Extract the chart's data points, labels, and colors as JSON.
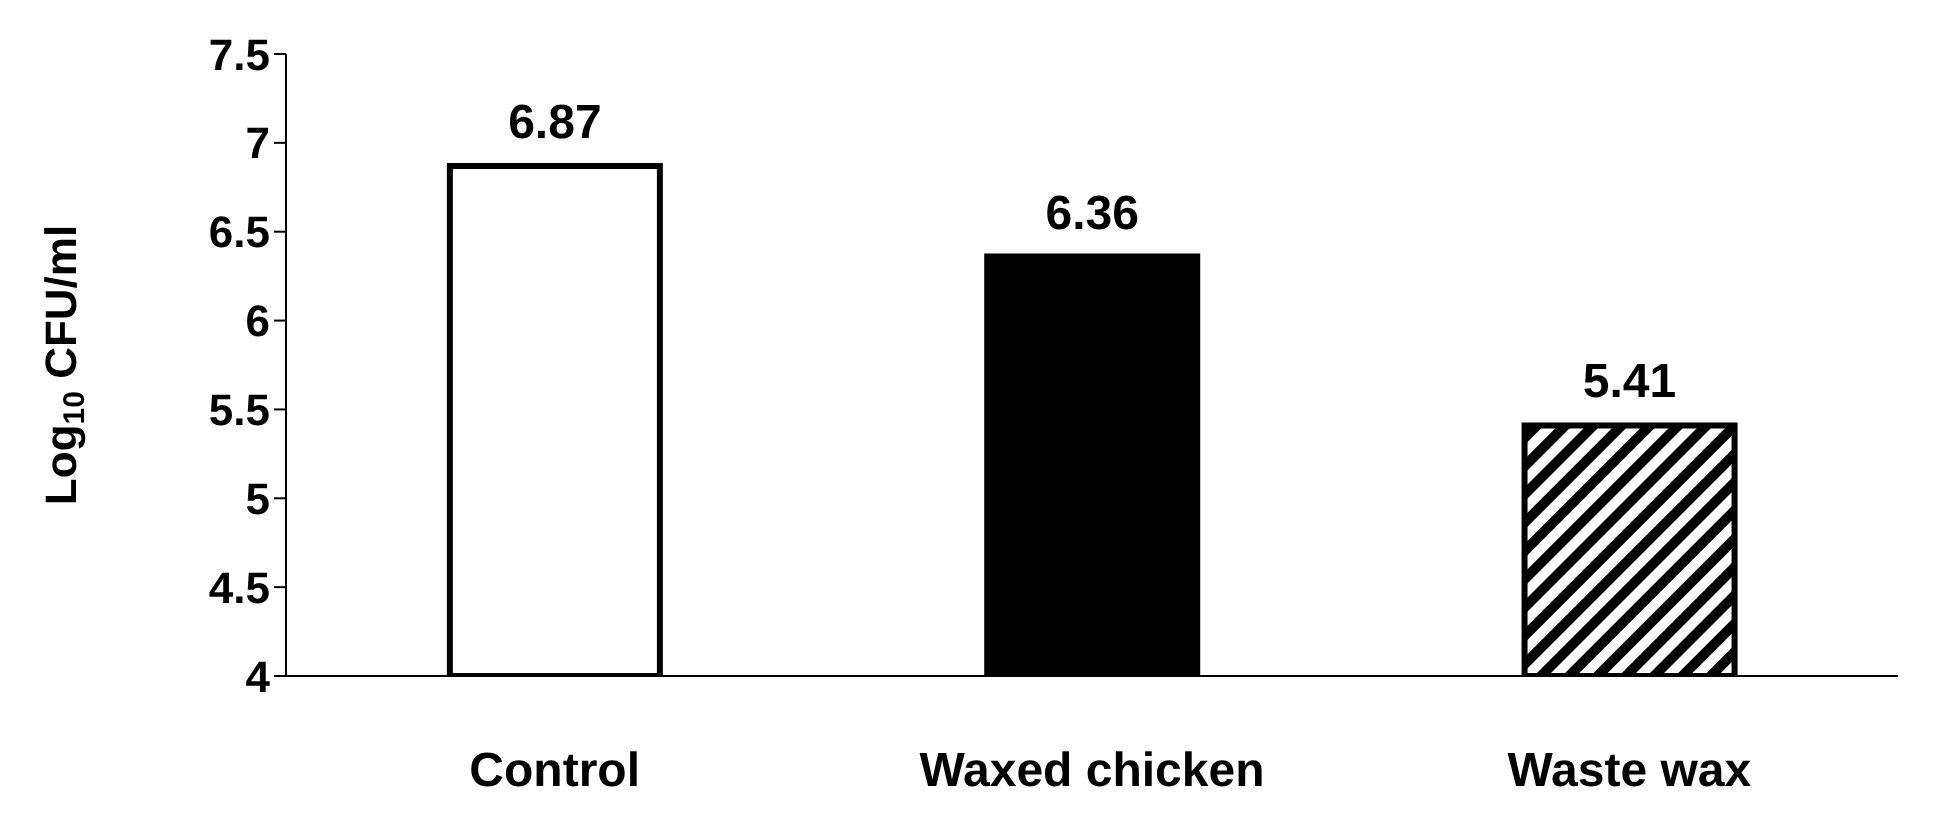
{
  "chart_data": {
    "type": "bar",
    "ylabel": "Log$_{10}$ CFU/ml",
    "categories": [
      "Control",
      "Waxed chicken",
      "Waste wax"
    ],
    "values": [
      6.87,
      6.36,
      5.41
    ],
    "colors": [
      "#ffffff",
      "#000000",
      "#000000"
    ],
    "ylim": [
      4,
      7.5
    ],
    "yticks": [
      4,
      4.5,
      5,
      5.5,
      6,
      6.5,
      7,
      7.5
    ],
    "data_labels": true,
    "grid": false,
    "legend": false
  }
}
